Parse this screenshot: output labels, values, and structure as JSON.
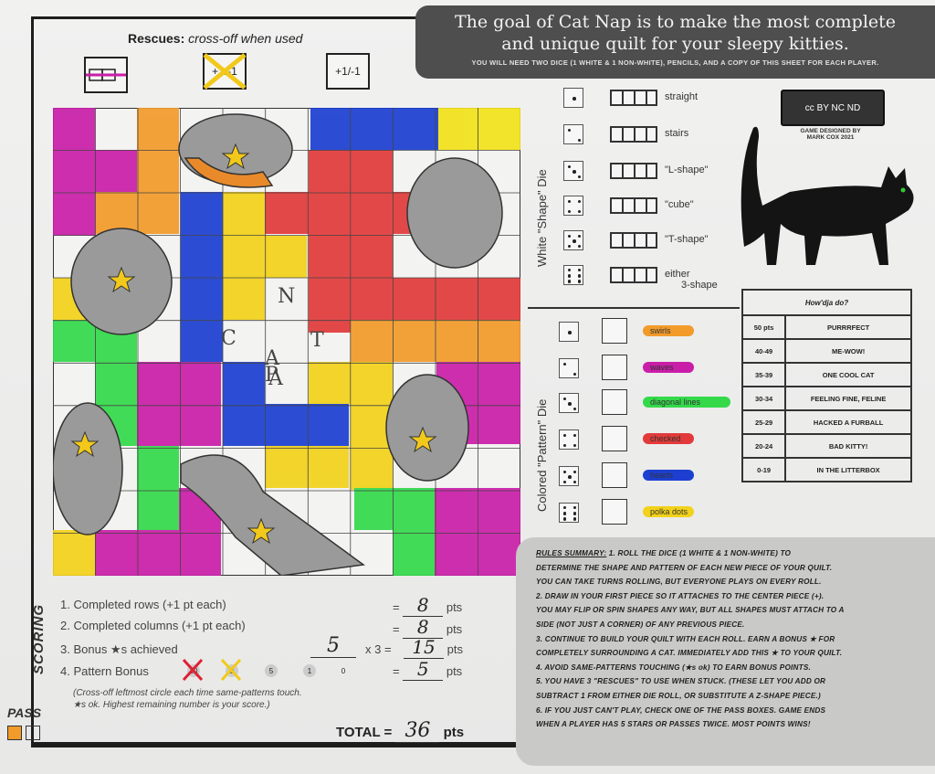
{
  "goal": {
    "line1": "The goal of Cat Nap is to make the most complete",
    "line2": "and unique quilt for your sleepy kitties.",
    "sub": "YOU WILL NEED TWO DICE (1 WHITE & 1 NON-WHITE), PENCILS, AND A COPY OF THIS SHEET FOR EACH PLAYER."
  },
  "rescues": {
    "title": "Rescues:",
    "hint": "cross-off when used",
    "boxes": [
      "",
      "+1/-1",
      "+1/-1"
    ]
  },
  "center_piece": {
    "letters": [
      "N",
      "C",
      "A",
      "T",
      "A",
      "P"
    ]
  },
  "white_die": {
    "label": "White \"Shape\" Die",
    "rows": [
      {
        "face": 1,
        "name": "straight"
      },
      {
        "face": 2,
        "name": "stairs"
      },
      {
        "face": 3,
        "name": "\"L-shape\""
      },
      {
        "face": 4,
        "name": "\"cube\""
      },
      {
        "face": 5,
        "name": "\"T-shape\""
      },
      {
        "face": 6,
        "name": "either",
        "name2": "3-shape"
      }
    ]
  },
  "pattern_die": {
    "label": "Colored \"Pattern\" Die",
    "rows": [
      {
        "face": 1,
        "name": "swirls",
        "color": "#f29b2a"
      },
      {
        "face": 2,
        "name": "waves",
        "color": "#c91ea8"
      },
      {
        "face": 3,
        "name": "diagonal lines",
        "color": "#34d94a"
      },
      {
        "face": 4,
        "name": "checked",
        "color": "#e23a3a"
      },
      {
        "face": 5,
        "name": "hearts",
        "color": "#1c3fd1"
      },
      {
        "face": 6,
        "name": "polka dots",
        "color": "#f2d21a"
      }
    ]
  },
  "credit": {
    "cc": "cc BY NC ND",
    "line1": "GAME DESIGNED BY",
    "line2": "MARK COX 2021"
  },
  "how": {
    "title": "How'dja do?",
    "rows": [
      {
        "pts": "50 pts",
        "label": "PURRRFECT"
      },
      {
        "pts": "40-49",
        "label": "ME-WOW!"
      },
      {
        "pts": "35-39",
        "label": "ONE COOL CAT"
      },
      {
        "pts": "30-34",
        "label": "FEELING FINE, FELINE"
      },
      {
        "pts": "25-29",
        "label": "HACKED A FURBALL"
      },
      {
        "pts": "20-24",
        "label": "BAD KITTY!"
      },
      {
        "pts": "0-19",
        "label": "IN THE LITTERBOX"
      }
    ]
  },
  "rules": {
    "title": "RULES SUMMARY:",
    "lines": [
      "1. ROLL THE DICE (1 WHITE & 1 NON-WHITE) TO",
      "DETERMINE THE SHAPE AND PATTERN OF EACH NEW PIECE OF YOUR QUILT.",
      "YOU CAN TAKE TURNS ROLLING, BUT EVERYONE PLAYS ON EVERY ROLL.",
      "2. DRAW IN YOUR FIRST PIECE SO IT ATTACHES TO THE CENTER PIECE (+).",
      "YOU MAY FLIP OR SPIN SHAPES ANY WAY, BUT ALL SHAPES MUST ATTACH TO A",
      "SIDE (NOT JUST A CORNER) OF ANY PREVIOUS PIECE.",
      "3. CONTINUE TO BUILD YOUR QUILT WITH EACH ROLL. EARN A BONUS ★ FOR",
      "COMPLETELY SURROUNDING A CAT. IMMEDIATELY ADD THIS ★ TO YOUR QUILT.",
      "4. AVOID SAME-PATTERNS TOUCHING (★s ok) TO EARN BONUS POINTS.",
      "5. YOU HAVE 3 \"RESCUES\" TO USE WHEN STUCK. (THESE LET YOU ADD OR",
      "SUBTRACT 1 FROM EITHER DIE ROLL, OR SUBSTITUTE A Z-SHAPE PIECE.)",
      "6. IF YOU JUST CAN'T PLAY, CHECK ONE OF THE PASS BOXES. GAME ENDS",
      "WHEN A PLAYER HAS 5 STARS OR PASSES TWICE. MOST POINTS WINS!"
    ]
  },
  "scoring": {
    "label": "SCORING",
    "items": [
      {
        "text": "1. Completed rows (+1 pt each)",
        "value": "8",
        "unit": "pts"
      },
      {
        "text": "2. Completed columns (+1 pt each)",
        "value": "8",
        "unit": "pts"
      },
      {
        "text": "3. Bonus ★s achieved",
        "count": "5",
        "mult": "x 3 =",
        "value": "15",
        "unit": "pts"
      },
      {
        "text": "4. Pattern Bonus",
        "value": "5",
        "unit": "pts"
      }
    ],
    "bonus_circles": [
      "10",
      "8",
      "5",
      "1",
      "0"
    ],
    "note1": "(Cross-off leftmost circle each time same-patterns touch.",
    "note2": "★s ok. Highest remaining number is your score.)",
    "pass": "PASS",
    "total_label": "TOTAL =",
    "total_value": "36",
    "total_unit": "pts"
  }
}
